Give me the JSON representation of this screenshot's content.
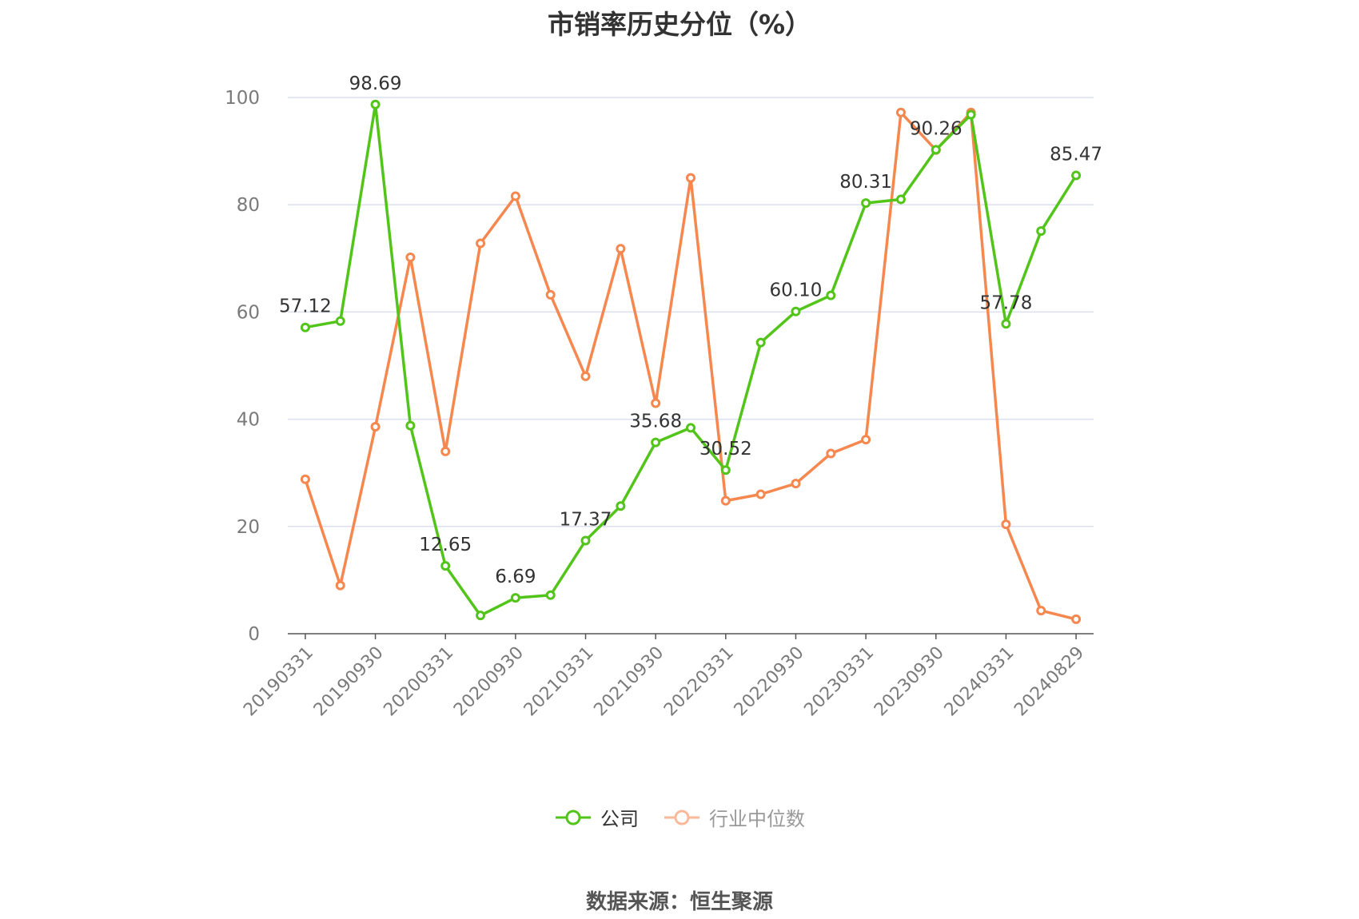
{
  "chart_data": {
    "type": "line",
    "title": "市销率历史分位（%）",
    "xlabel": "",
    "ylabel": "",
    "ylim": [
      0,
      100
    ],
    "yticks": [
      0,
      20,
      40,
      60,
      80,
      100
    ],
    "grid": true,
    "legend_position": "bottom",
    "categories": [
      "20190331",
      "20190630",
      "20190930",
      "20191231",
      "20200331",
      "20200630",
      "20200930",
      "20201231",
      "20210331",
      "20210630",
      "20210930",
      "20211231",
      "20220331",
      "20220630",
      "20220930",
      "20221231",
      "20230331",
      "20230630",
      "20230930",
      "20231231",
      "20240331",
      "20240630",
      "20240829"
    ],
    "xtick_labels": [
      "20190331",
      "20190930",
      "20200331",
      "20200930",
      "20210331",
      "20210930",
      "20220331",
      "20220930",
      "20230331",
      "20230930",
      "20240331",
      "20240829"
    ],
    "series": [
      {
        "name": "公司",
        "color": "#52c41a",
        "values": [
          57.12,
          58.3,
          98.69,
          38.8,
          12.65,
          3.4,
          6.69,
          7.2,
          17.37,
          23.8,
          35.68,
          38.4,
          30.52,
          54.3,
          60.1,
          63.1,
          80.31,
          81.0,
          90.26,
          96.8,
          57.78,
          75.1,
          85.47
        ],
        "labels": [
          "57.12",
          null,
          "98.69",
          null,
          "12.65",
          null,
          "6.69",
          null,
          "17.37",
          null,
          "35.68",
          null,
          "30.52",
          null,
          "60.10",
          null,
          "80.31",
          null,
          "90.26",
          null,
          "57.78",
          null,
          "85.47"
        ]
      },
      {
        "name": "行业中位数",
        "color": "#f5874f",
        "values": [
          28.8,
          9.0,
          38.6,
          70.2,
          34.0,
          72.8,
          81.6,
          63.2,
          48.0,
          71.8,
          43.0,
          85.0,
          24.8,
          26.0,
          28.0,
          33.6,
          36.2,
          97.2,
          90.2,
          97.2,
          20.4,
          4.3,
          2.7
        ]
      }
    ],
    "source": "数据来源：恒生聚源"
  }
}
